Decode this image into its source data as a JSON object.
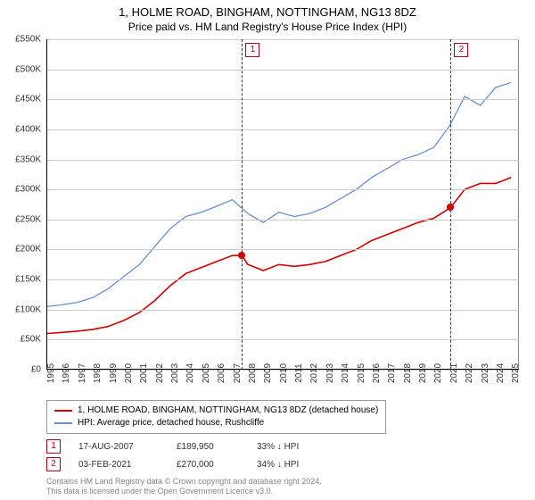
{
  "title": {
    "line1": "1, HOLME ROAD, BINGHAM, NOTTINGHAM, NG13 8DZ",
    "line2": "Price paid vs. HM Land Registry's House Price Index (HPI)"
  },
  "chart": {
    "type": "line",
    "background_color": "#ffffff",
    "grid_color": "#cccccc",
    "xlim": [
      1995,
      2025.5
    ],
    "ylim": [
      0,
      550000
    ],
    "yticks": [
      0,
      50000,
      100000,
      150000,
      200000,
      250000,
      300000,
      350000,
      400000,
      450000,
      500000,
      550000
    ],
    "ytick_labels": [
      "£0",
      "£50K",
      "£100K",
      "£150K",
      "£200K",
      "£250K",
      "£300K",
      "£350K",
      "£400K",
      "£450K",
      "£500K",
      "£550K"
    ],
    "xticks": [
      1995,
      1996,
      1997,
      1998,
      1999,
      2000,
      2001,
      2002,
      2003,
      2004,
      2005,
      2006,
      2007,
      2008,
      2009,
      2010,
      2011,
      2012,
      2013,
      2014,
      2015,
      2016,
      2017,
      2018,
      2019,
      2020,
      2021,
      2022,
      2023,
      2024,
      2025
    ],
    "series": [
      {
        "name": "property",
        "color": "#d10000",
        "line_width": 1.6,
        "data": [
          [
            1995,
            60000
          ],
          [
            1996,
            62000
          ],
          [
            1997,
            64000
          ],
          [
            1998,
            67000
          ],
          [
            1999,
            72000
          ],
          [
            2000,
            82000
          ],
          [
            2001,
            95000
          ],
          [
            2002,
            115000
          ],
          [
            2003,
            140000
          ],
          [
            2004,
            160000
          ],
          [
            2005,
            170000
          ],
          [
            2006,
            180000
          ],
          [
            2007,
            190000
          ],
          [
            2007.63,
            189950
          ],
          [
            2008,
            175000
          ],
          [
            2009,
            165000
          ],
          [
            2010,
            175000
          ],
          [
            2011,
            172000
          ],
          [
            2012,
            175000
          ],
          [
            2013,
            180000
          ],
          [
            2014,
            190000
          ],
          [
            2015,
            200000
          ],
          [
            2016,
            215000
          ],
          [
            2017,
            225000
          ],
          [
            2018,
            235000
          ],
          [
            2019,
            245000
          ],
          [
            2020,
            252000
          ],
          [
            2021.09,
            270000
          ],
          [
            2022,
            300000
          ],
          [
            2023,
            310000
          ],
          [
            2024,
            310000
          ],
          [
            2025,
            320000
          ]
        ]
      },
      {
        "name": "hpi",
        "color": "#6a8fd8",
        "line_width": 1.3,
        "data": [
          [
            1995,
            105000
          ],
          [
            1996,
            108000
          ],
          [
            1997,
            112000
          ],
          [
            1998,
            120000
          ],
          [
            1999,
            135000
          ],
          [
            2000,
            155000
          ],
          [
            2001,
            175000
          ],
          [
            2002,
            205000
          ],
          [
            2003,
            235000
          ],
          [
            2004,
            255000
          ],
          [
            2005,
            262000
          ],
          [
            2006,
            272000
          ],
          [
            2007,
            283000
          ],
          [
            2008,
            260000
          ],
          [
            2009,
            245000
          ],
          [
            2010,
            262000
          ],
          [
            2011,
            255000
          ],
          [
            2012,
            260000
          ],
          [
            2013,
            270000
          ],
          [
            2014,
            285000
          ],
          [
            2015,
            300000
          ],
          [
            2016,
            320000
          ],
          [
            2017,
            335000
          ],
          [
            2018,
            350000
          ],
          [
            2019,
            358000
          ],
          [
            2020,
            370000
          ],
          [
            2021,
            405000
          ],
          [
            2022,
            455000
          ],
          [
            2023,
            440000
          ],
          [
            2024,
            470000
          ],
          [
            2025,
            478000
          ]
        ]
      }
    ],
    "reference_lines": [
      {
        "id": "1",
        "x": 2007.63,
        "y_marker": 189950
      },
      {
        "id": "2",
        "x": 2021.09,
        "y_marker": 270000
      }
    ],
    "marker_color": "#d10000",
    "ref_line_color": "#b00020"
  },
  "legend": {
    "items": [
      {
        "color": "#d10000",
        "label": "1, HOLME ROAD, BINGHAM, NOTTINGHAM, NG13 8DZ (detached house)"
      },
      {
        "color": "#6a8fd8",
        "label": "HPI: Average price, detached house, Rushcliffe"
      }
    ]
  },
  "sales": [
    {
      "id": "1",
      "date": "17-AUG-2007",
      "price": "£189,950",
      "pct": "33%",
      "dir": "↓",
      "suffix": "HPI"
    },
    {
      "id": "2",
      "date": "03-FEB-2021",
      "price": "£270,000",
      "pct": "34%",
      "dir": "↓",
      "suffix": "HPI"
    }
  ],
  "footer": {
    "line1": "Contains HM Land Registry data © Crown copyright and database right 2024.",
    "line2": "This data is licensed under the Open Government Licence v3.0."
  }
}
